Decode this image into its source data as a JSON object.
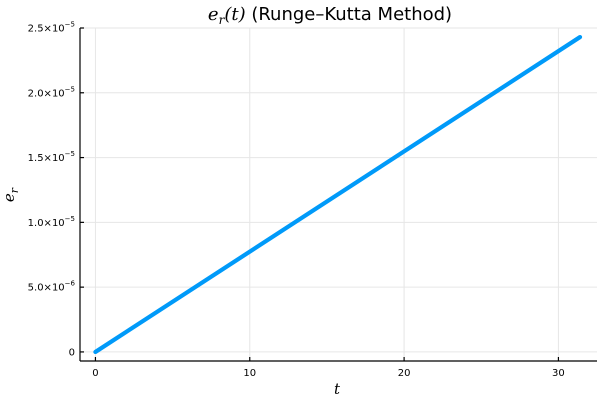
{
  "chart_data": {
    "type": "line",
    "title": {
      "math_symbol": "e",
      "math_subscript": "r",
      "math_arg": "(t)",
      "text": " (Runge–Kutta Method)"
    },
    "xlabel": "t",
    "ylabel": {
      "symbol": "e",
      "subscript": "r"
    },
    "xlim": [
      -1,
      32.5
    ],
    "ylim": [
      -7e-07,
      2.5e-05
    ],
    "x_ticks": [
      {
        "value": 0,
        "label": "0"
      },
      {
        "value": 10,
        "label": "10"
      },
      {
        "value": 20,
        "label": "20"
      },
      {
        "value": 30,
        "label": "30"
      }
    ],
    "y_ticks": [
      {
        "value": 0,
        "mantissa": "0",
        "exponent": ""
      },
      {
        "value": 5e-06,
        "mantissa": "5.0×10",
        "exponent": "−6"
      },
      {
        "value": 1e-05,
        "mantissa": "1.0×10",
        "exponent": "−5"
      },
      {
        "value": 1.5e-05,
        "mantissa": "1.5×10",
        "exponent": "−5"
      },
      {
        "value": 2e-05,
        "mantissa": "2.0×10",
        "exponent": "−5"
      },
      {
        "value": 2.5e-05,
        "mantissa": "2.5×10",
        "exponent": "−5"
      }
    ],
    "grid": true,
    "legend": "none",
    "series": [
      {
        "color": "#009af9",
        "x": [
          0,
          31.4
        ],
        "y": [
          0,
          2.43e-05
        ]
      }
    ]
  }
}
